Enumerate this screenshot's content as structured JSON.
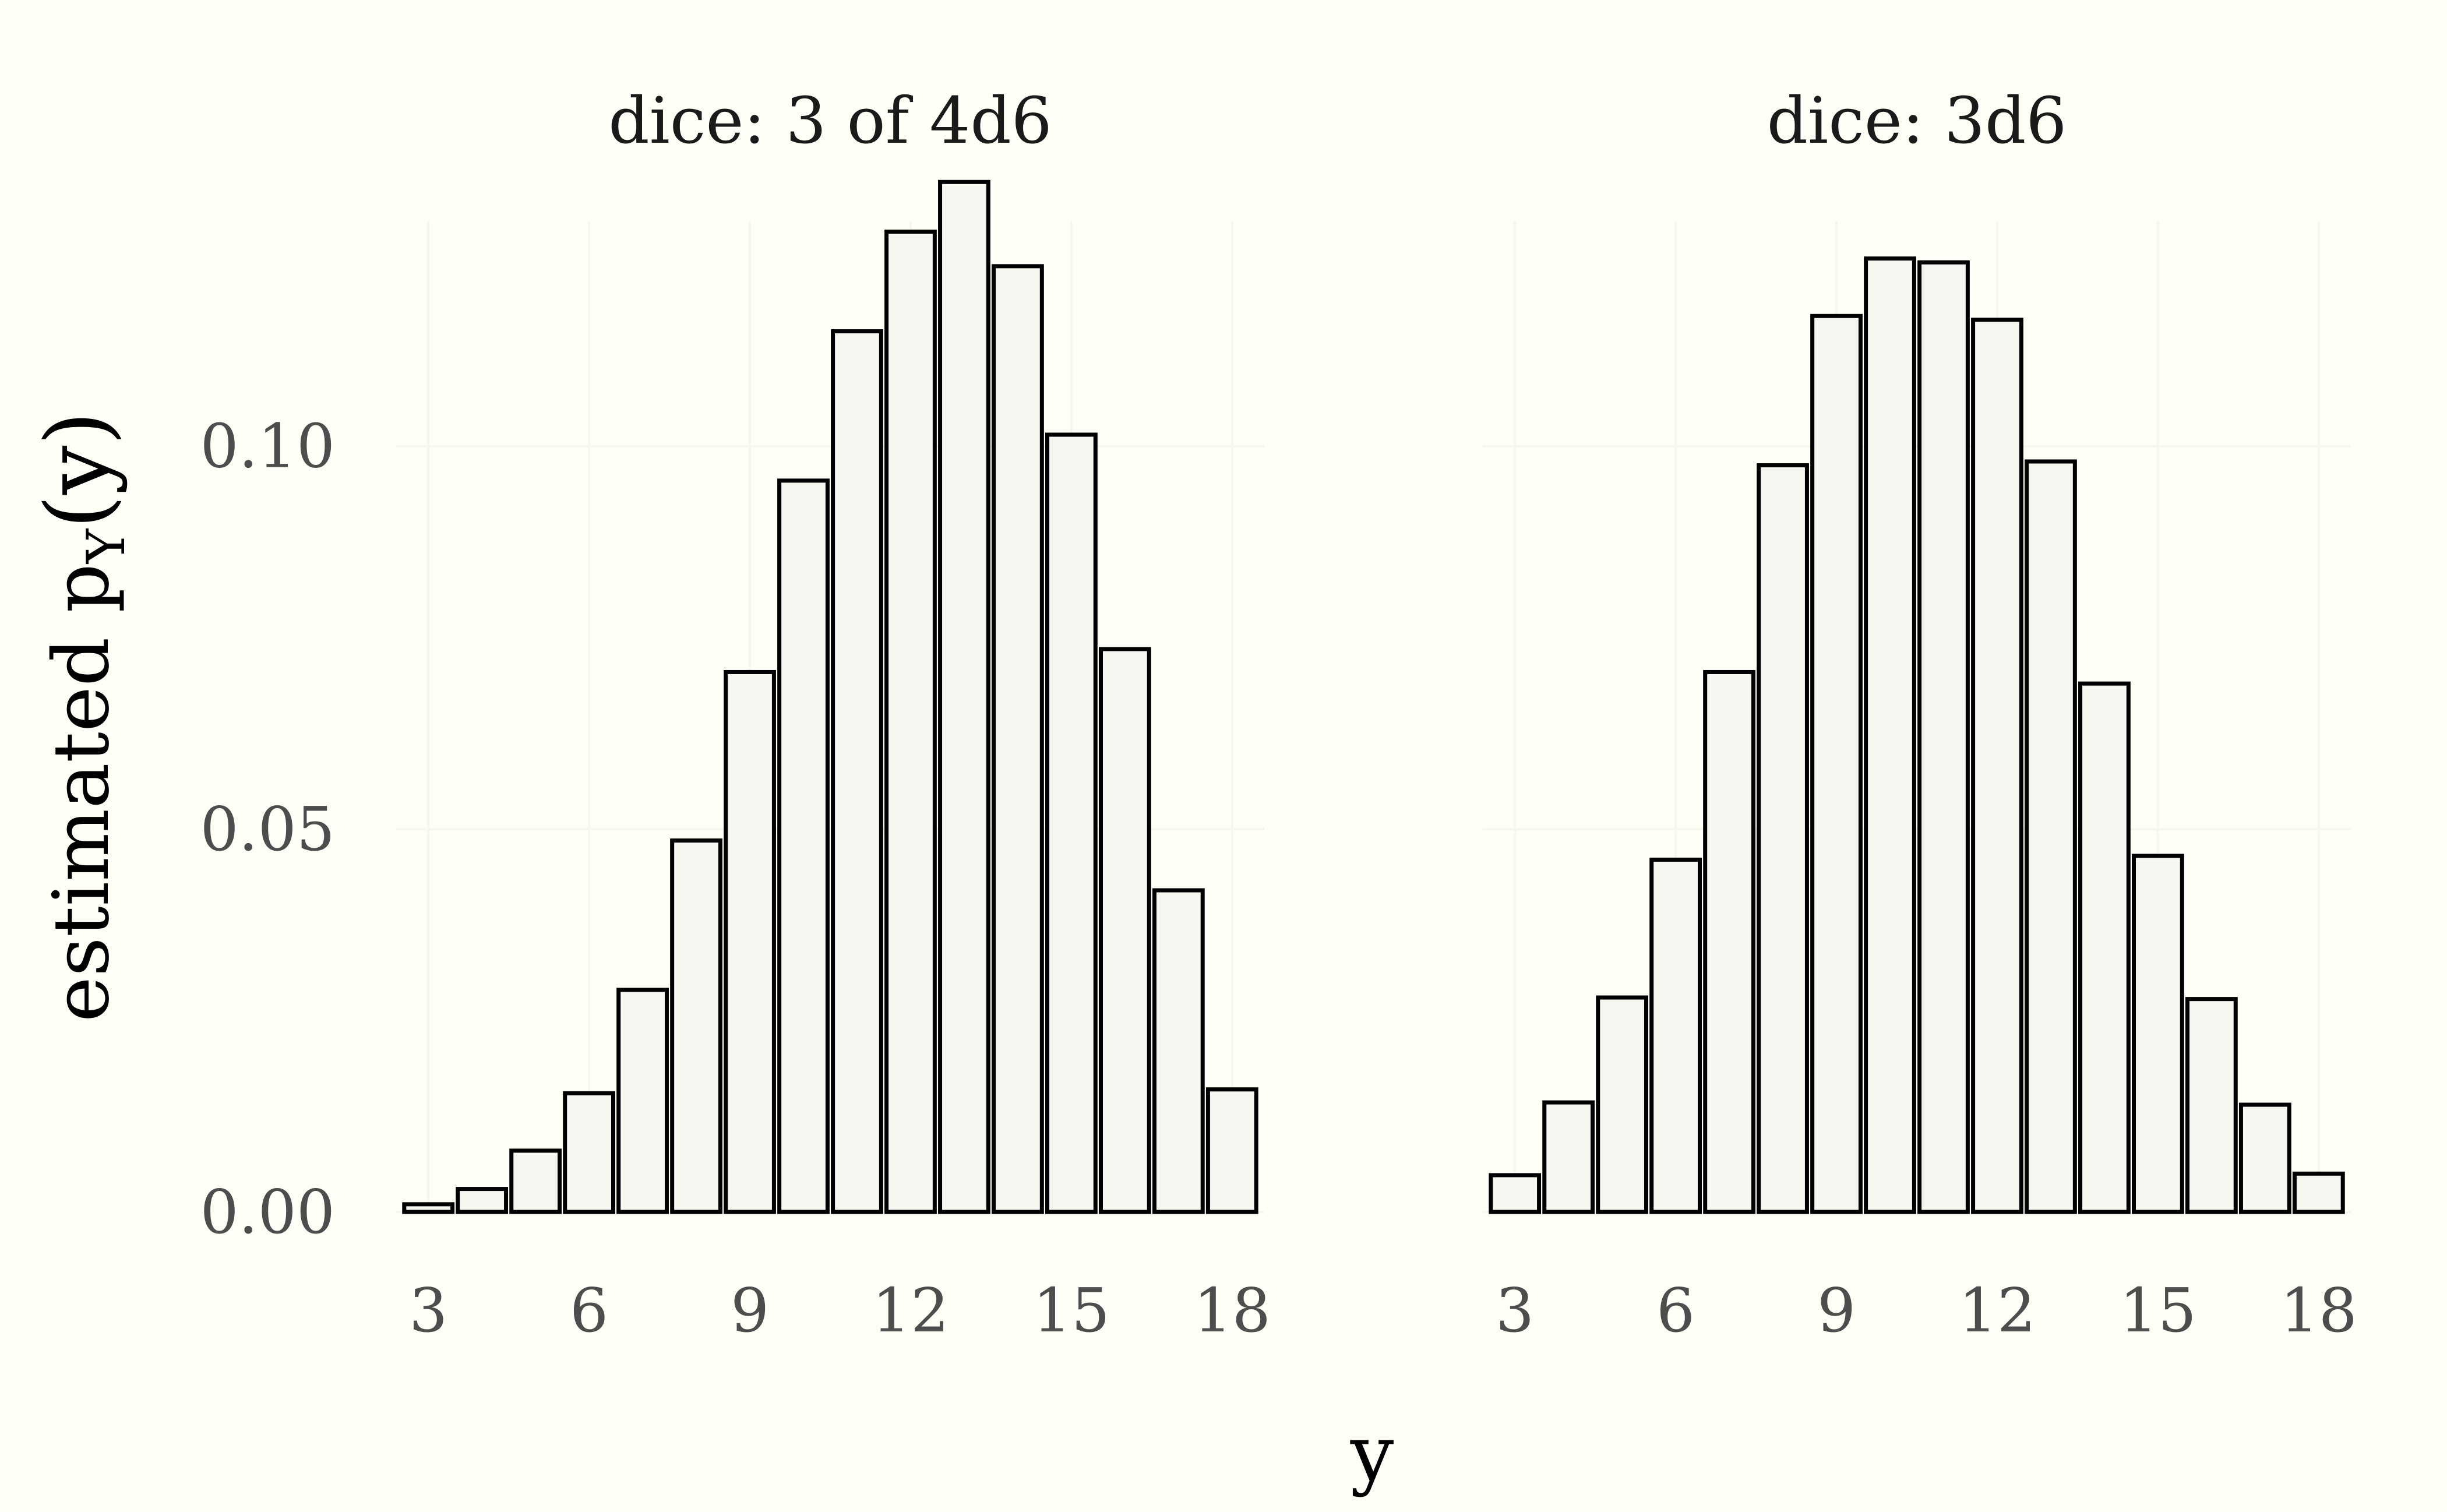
{
  "chart_data": {
    "type": "bar",
    "facets": [
      {
        "title": "dice: 3 of 4d6",
        "x": [
          3,
          4,
          5,
          6,
          7,
          8,
          9,
          10,
          11,
          12,
          13,
          14,
          15,
          16,
          17,
          18
        ],
        "values": [
          0.001,
          0.003,
          0.008,
          0.0155,
          0.029,
          0.0485,
          0.0705,
          0.0955,
          0.115,
          0.128,
          0.1345,
          0.1235,
          0.1015,
          0.0735,
          0.042,
          0.016
        ]
      },
      {
        "title": "dice: 3d6",
        "x": [
          3,
          4,
          5,
          6,
          7,
          8,
          9,
          10,
          11,
          12,
          13,
          14,
          15,
          16,
          17,
          18
        ],
        "values": [
          0.0048,
          0.0143,
          0.028,
          0.046,
          0.0705,
          0.0975,
          0.117,
          0.1245,
          0.124,
          0.1165,
          0.098,
          0.069,
          0.0465,
          0.0278,
          0.014,
          0.005
        ]
      }
    ],
    "xlabel": "y",
    "ylabel_main": "estimated p",
    "ylabel_sub": "Y",
    "ylabel_tail": "(y)",
    "x_ticks": [
      "3",
      "6",
      "9",
      "12",
      "15",
      "18"
    ],
    "x_tick_values": [
      3,
      6,
      9,
      12,
      15,
      18
    ],
    "y_ticks": [
      "0.00",
      "0.05",
      "0.10"
    ],
    "y_tick_values": [
      0,
      0.05,
      0.1
    ],
    "ylim": [
      0,
      0.14
    ],
    "xlim": [
      2.4,
      18.6
    ],
    "grid": true,
    "legend": "none"
  }
}
